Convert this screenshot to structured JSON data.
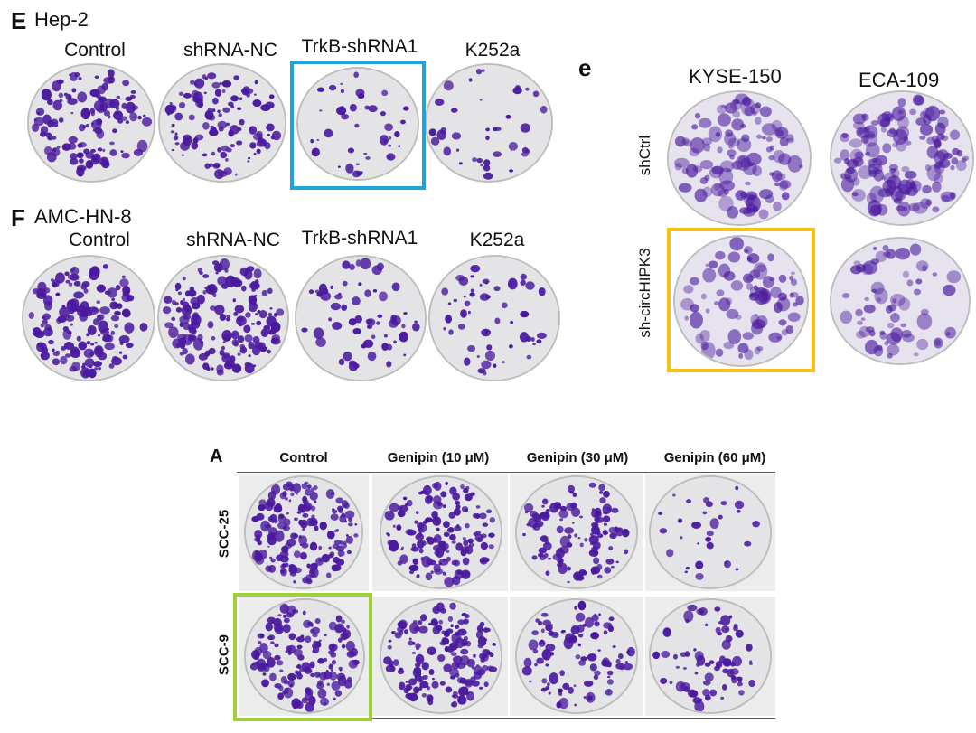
{
  "panels": {
    "E": {
      "letter": "E",
      "cell_line": "Hep-2",
      "columns": [
        "Control",
        "shRNA-NC",
        "TrkB-shRNA1",
        "K252a"
      ],
      "highlight_color": "#1fa3db",
      "highlighted_column": "TrkB-shRNA1"
    },
    "F": {
      "letter": "F",
      "cell_line": "AMC-HN-8",
      "columns": [
        "Control",
        "shRNA-NC",
        "TrkB-shRNA1",
        "K252a"
      ]
    },
    "e": {
      "letter": "e",
      "columns": [
        "KYSE-150",
        "ECA-109"
      ],
      "rows": [
        "shCtrl",
        "sh-circHIPK3"
      ],
      "highlight_color": "#f6c20f",
      "highlighted_cell": "sh-circHIPK3 / KYSE-150"
    },
    "A": {
      "letter": "A",
      "columns": [
        "Control",
        "Genipin (10 μM)",
        "Genipin (30 μM)",
        "Genipin (60 μM)"
      ],
      "rows": [
        "SCC-25",
        "SCC-9"
      ],
      "highlight_color": "#9fd136",
      "highlighted_cell": "SCC-9 / Control"
    }
  },
  "colony_color": "#4a1a9e"
}
